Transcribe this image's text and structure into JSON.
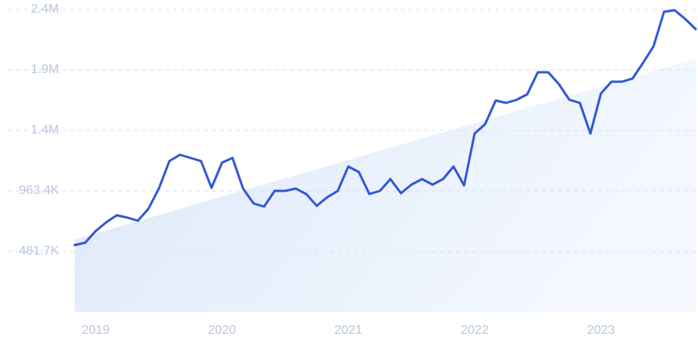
{
  "chart_data": {
    "type": "line",
    "categories": [
      null,
      null,
      "2019",
      null,
      null,
      null,
      null,
      null,
      null,
      null,
      null,
      null,
      null,
      null,
      "2020",
      null,
      null,
      null,
      null,
      null,
      null,
      null,
      null,
      null,
      null,
      null,
      "2021",
      null,
      null,
      null,
      null,
      null,
      null,
      null,
      null,
      null,
      null,
      null,
      "2022",
      null,
      null,
      null,
      null,
      null,
      null,
      null,
      null,
      null,
      null,
      null,
      "2023",
      null,
      null,
      null,
      null,
      null,
      null,
      null,
      null,
      null
    ],
    "values": [
      532000,
      550500,
      644400,
      713200,
      769500,
      750700,
      725700,
      819500,
      982200,
      1201200,
      1251200,
      1226200,
      1201200,
      988400,
      1188600,
      1226200,
      982200,
      863300,
      838300,
      963400,
      963400,
      982200,
      938400,
      844600,
      913400,
      963400,
      1157400,
      1113600,
      938400,
      963400,
      1057300,
      944700,
      1013500,
      1057300,
      1013500,
      1057300,
      1157400,
      1007200,
      1420100,
      1495200,
      1682900,
      1664100,
      1689100,
      1732900,
      1908100,
      1908100,
      1814200,
      1689100,
      1664100,
      1420100,
      1739200,
      1833000,
      1833000,
      1858000,
      1983200,
      2114500,
      2389800,
      2402300,
      2333500,
      2252200
    ],
    "trend_values": [
      575500,
      2014400
    ],
    "color": "#3358d4",
    "ylim": [
      0,
      2408500
    ],
    "yticks": [
      {
        "value": 481700,
        "label": "481.7K"
      },
      {
        "value": 963400,
        "label": "963.4K"
      },
      {
        "value": 1445100,
        "label": "1.4M"
      },
      {
        "value": 1926800,
        "label": "1.9M"
      },
      {
        "value": 2408500,
        "label": "2.4M"
      }
    ],
    "grid": true
  }
}
